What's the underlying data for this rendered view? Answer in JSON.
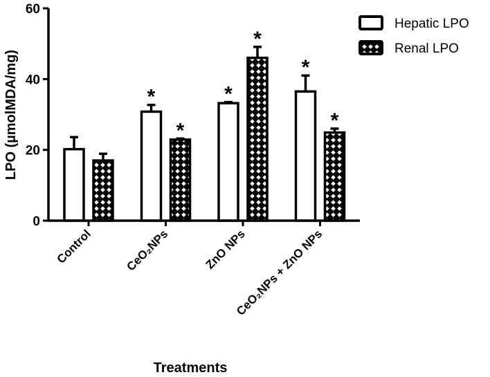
{
  "chart_data": {
    "type": "bar",
    "title": "",
    "xlabel": "Treatments",
    "ylabel": "LPO (µmolMDA/mg)",
    "ylim": [
      0,
      60
    ],
    "yticks": [
      0,
      20,
      40,
      60
    ],
    "categories": [
      "Control",
      "CeO₂NPs",
      "ZnO NPs",
      "CeO₂NPs + ZnO NPs"
    ],
    "series": [
      {
        "name": "Hepatic LPO",
        "fill": "open",
        "values": [
          20.2,
          30.8,
          33.2,
          36.5
        ],
        "errors": [
          3.4,
          1.9,
          0.3,
          4.5
        ],
        "significant": [
          false,
          true,
          true,
          true
        ]
      },
      {
        "name": "Renal LPO",
        "fill": "crosshatch",
        "values": [
          17.0,
          22.9,
          46.0,
          24.9
        ],
        "errors": [
          1.9,
          0.3,
          3.1,
          1.1
        ],
        "significant": [
          false,
          true,
          true,
          true
        ]
      }
    ],
    "significance_marker": "*",
    "legend_position": "top-right",
    "grid": false,
    "colors": {
      "ink": "#000000",
      "background": "#ffffff"
    }
  }
}
